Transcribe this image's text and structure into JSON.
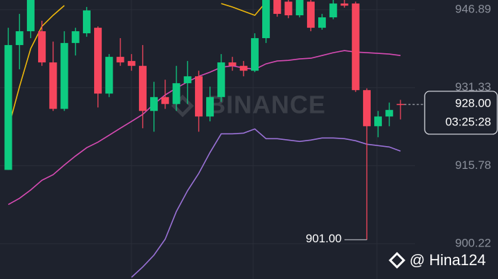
{
  "chart_data": {
    "type": "candlestick",
    "ylim": [
      893.17,
      948.83
    ],
    "yticks": [
      900.22,
      915.78,
      931.33,
      946.89
    ],
    "up_color": "#0ecb81",
    "down_color": "#f6465d",
    "open": [
      914.94,
      939.84,
      942.6,
      942.6,
      936.38,
      927.11,
      940.25,
      942.19,
      943.29,
      930.16,
      937.49,
      936.66,
      935.69,
      926.7,
      929.46,
      928.08,
      932.23,
      933.61,
      925.59,
      929.46,
      936.38,
      935.69,
      934.72,
      941.22,
      948.83,
      948.5,
      945.78,
      948.5,
      943.29,
      945.37,
      948.13,
      948.13,
      930.85,
      923.65,
      925.59,
      928.1
    ],
    "high": [
      943.29,
      946.06,
      948.83,
      944.68,
      940.53,
      942.6,
      943.29,
      947.44,
      943.57,
      938.04,
      941.22,
      938.04,
      939.84,
      932.51,
      932.92,
      935.69,
      936.66,
      934.72,
      931.54,
      938.04,
      937.49,
      936.66,
      942.19,
      948.83,
      948.83,
      948.83,
      948.83,
      948.83,
      946.06,
      948.83,
      948.83,
      948.5,
      931.2,
      926.7,
      928.36,
      928.9
    ],
    "low": [
      914.94,
      935.0,
      941.22,
      935.69,
      926.7,
      926.7,
      937.76,
      941.5,
      927.39,
      929.46,
      935.69,
      934.72,
      923.24,
      922.55,
      927.11,
      926.7,
      928.08,
      922.55,
      924.62,
      928.5,
      934.72,
      933.61,
      934.44,
      940.25,
      945.5,
      945.2,
      945.37,
      942.6,
      942.9,
      945.0,
      947.3,
      930.5,
      901.0,
      921.45,
      923.65,
      925.0
    ],
    "close": [
      939.84,
      942.6,
      948.83,
      936.38,
      927.11,
      940.25,
      942.6,
      946.75,
      930.16,
      937.49,
      936.38,
      935.69,
      926.7,
      929.46,
      928.08,
      932.23,
      933.61,
      925.59,
      929.46,
      936.38,
      935.69,
      934.72,
      941.22,
      948.83,
      946.06,
      945.78,
      948.83,
      943.29,
      945.37,
      948.13,
      947.7,
      930.85,
      923.65,
      925.59,
      926.9,
      928.0
    ],
    "lines": [
      {
        "color": "#f0b90b",
        "values": [
          923.24,
          931.54,
          939.14,
          943.57,
          945.78,
          947.72,
          null,
          null,
          null,
          null,
          null,
          null,
          null,
          null,
          null,
          null,
          null,
          null,
          null,
          948.13,
          947.44,
          946.61,
          945.78,
          948.41,
          null,
          null,
          null,
          null,
          null,
          null,
          null,
          null,
          null,
          null,
          null,
          null
        ]
      },
      {
        "color": "#d84bb4",
        "values": [
          908.03,
          909.27,
          910.93,
          912.87,
          913.98,
          915.91,
          917.71,
          919.37,
          920.48,
          921.86,
          923.25,
          924.62,
          926.01,
          928.08,
          929.88,
          931.26,
          932.51,
          933.61,
          934.44,
          935.41,
          935.69,
          935.27,
          935.0,
          936.1,
          936.66,
          936.79,
          937.07,
          937.21,
          937.76,
          938.32,
          938.73,
          938.45,
          938.32,
          938.18,
          938.04,
          937.76
        ]
      },
      {
        "color": "#9b72d8",
        "values": [
          null,
          null,
          null,
          null,
          null,
          null,
          null,
          null,
          null,
          null,
          null,
          893.51,
          895.58,
          897.93,
          901.11,
          906.64,
          910.79,
          914.25,
          918.4,
          922.13,
          922.13,
          922.27,
          923.1,
          921.17,
          921.17,
          920.89,
          920.61,
          920.89,
          921.31,
          921.31,
          921.17,
          920.75,
          920.06,
          919.78,
          919.51,
          918.68
        ]
      }
    ],
    "last_price": {
      "value": 928.0,
      "label": "928.00"
    },
    "countdown": "03:25:28",
    "low_annotation": {
      "value": 901.0,
      "label": "901.00"
    },
    "watermark": "BINANCE",
    "credit": "@ Hina124"
  }
}
